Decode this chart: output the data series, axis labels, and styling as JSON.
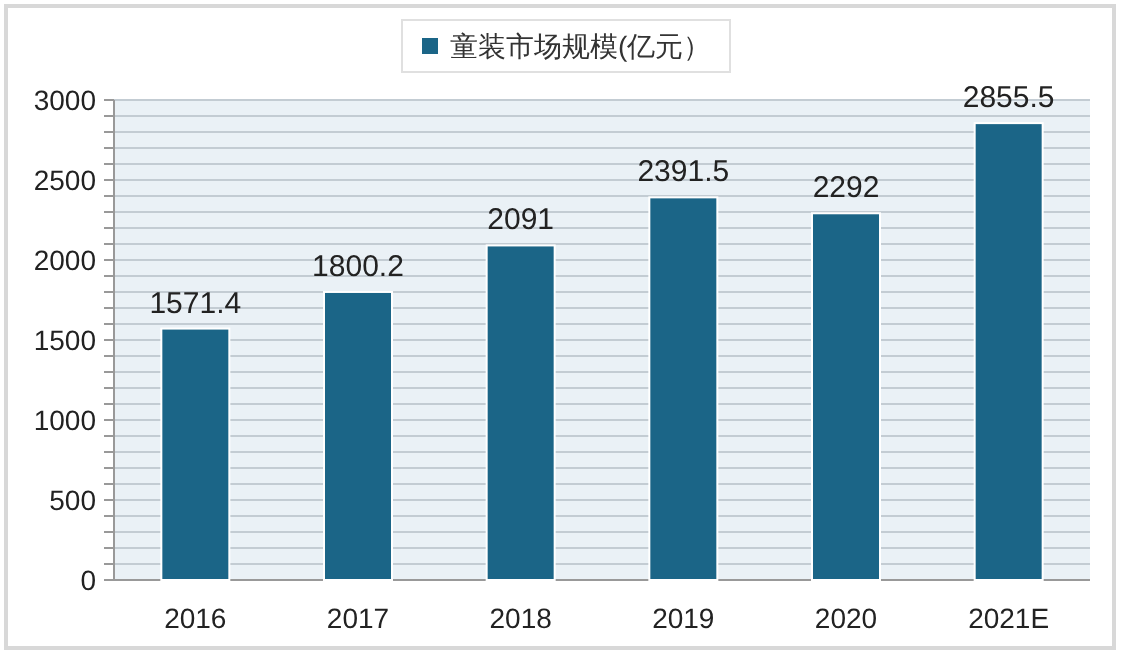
{
  "chart_data": {
    "type": "bar",
    "categories": [
      "2016",
      "2017",
      "2018",
      "2019",
      "2020",
      "2021E"
    ],
    "series": [
      {
        "name": "童装市场规模(亿元）",
        "color": "#1b6587",
        "values": [
          1571.4,
          1800.2,
          2091,
          2391.5,
          2292,
          2855.5
        ]
      }
    ],
    "ylim": [
      0,
      3000
    ],
    "yticks": [
      0,
      {
        "value": 100,
        "label": null
      },
      {
        "value": 200,
        "label": null
      },
      {
        "value": 300,
        "label": null
      },
      {
        "value": 400,
        "label": null
      },
      500,
      {
        "value": 600,
        "label": null
      },
      {
        "value": 700,
        "label": null
      },
      {
        "value": 800,
        "label": null
      },
      {
        "value": 900,
        "label": null
      },
      1000,
      {
        "value": 1100,
        "label": null
      },
      {
        "value": 1200,
        "label": null
      },
      {
        "value": 1300,
        "label": null
      },
      {
        "value": 1400,
        "label": null
      },
      1500,
      {
        "value": 1600,
        "label": null
      },
      {
        "value": 1700,
        "label": null
      },
      {
        "value": 1800,
        "label": null
      },
      {
        "value": 1900,
        "label": null
      },
      2000,
      {
        "value": 2100,
        "label": null
      },
      {
        "value": 2200,
        "label": null
      },
      {
        "value": 2300,
        "label": null
      },
      {
        "value": 2400,
        "label": null
      },
      2500,
      {
        "value": 2600,
        "label": null
      },
      {
        "value": 2700,
        "label": null
      },
      {
        "value": 2800,
        "label": null
      },
      {
        "value": 2900,
        "label": null
      },
      3000
    ],
    "grid": "y",
    "legend": "top",
    "data_labels": true
  }
}
